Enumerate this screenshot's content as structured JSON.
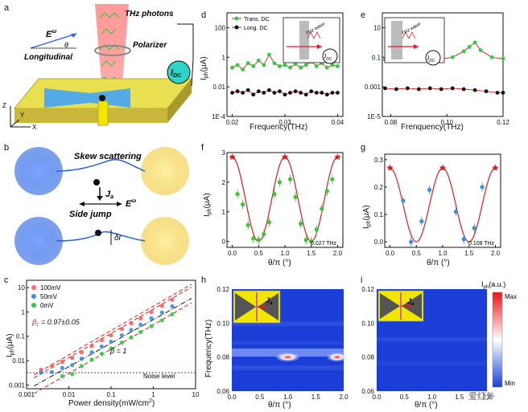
{
  "colors": {
    "red": "#e41a1c",
    "green": "#2ecc40",
    "blue_dot": "#3a7bd5",
    "yellow_pad": "#f2e600",
    "cyan": "#2fd3c8",
    "beam": "#ff6b6b",
    "heatmap_bg": "#1b3fd6"
  },
  "panels": {
    "a": {
      "label": "a",
      "thz_photons": "THz photons",
      "polarizer": "Polarizer",
      "e_field": "E",
      "e_sup": "ω",
      "theta": "θ",
      "longitudinal": "Longitudinal",
      "idc": "I",
      "idc_sub": "DC",
      "axis_z": "Z",
      "axis_y": "Y",
      "axis_x": "X"
    },
    "b": {
      "label": "b",
      "skew": "Skew scattering",
      "side_jump": "Side jump",
      "ja": "J",
      "ja_sub": "a",
      "e_field": "E",
      "e_sup": "ω",
      "delta_r": "δr"
    },
    "c": {
      "label": "c",
      "legend": [
        "100mV",
        "50mV",
        "0mV"
      ],
      "beta_fit": "β",
      "beta_fit_sub": "1",
      "beta_fit_val": " = 0.97±0.05",
      "beta_one": "β = 1",
      "noise": "Noise level",
      "xlabel": "Power density(mW/cm",
      "xlabel_sup": "2",
      "xlabel_end": ")",
      "ylabel": "I",
      "ylabel_sub": "ph",
      "ylabel_end": "(μA)",
      "xticks": [
        "0.001",
        "0.01",
        "0.1",
        "1",
        "10"
      ],
      "yticks": [
        "0.001",
        "0.01",
        "0.1",
        "1",
        "10"
      ]
    },
    "d": {
      "label": "d",
      "legend": [
        "Trans. DC",
        "Long. DC"
      ],
      "xlabel": "Frequency(THz)",
      "ylabel": "I",
      "ylabel_sub": "ph",
      "ylabel_end": "(μA)",
      "xticks": [
        "0.02",
        "0.03",
        "0.04"
      ],
      "yticks": [
        "1E-4",
        "0.01",
        "1",
        "100"
      ],
      "inset_thz": "THz wave",
      "inset_idc": "I",
      "inset_idc_sub": "DC"
    },
    "e": {
      "label": "e",
      "xlabel": "Frenquency(THz)",
      "yticks": [
        "1E-5",
        "0.001",
        "0.1",
        "10"
      ],
      "xticks": [
        "0.08",
        "0.10",
        "0.12"
      ],
      "inset_thz": "THz wave",
      "inset_idc": "I",
      "inset_idc_sub": "DC"
    },
    "f": {
      "label": "f",
      "freq_note": "0.027 THz",
      "xlabel": "θ/π (°)",
      "ylabel": "I",
      "ylabel_sub": "ph",
      "ylabel_end": "(μA)",
      "xticks": [
        "0.0",
        "0.5",
        "1.0",
        "1.5",
        "2.0"
      ],
      "yticks": [
        "0",
        "1",
        "2",
        "3"
      ]
    },
    "g": {
      "label": "g",
      "freq_note": "0.108 THz",
      "xlabel": "θ/π (°)",
      "ylabel": "I",
      "ylabel_sub": "ph",
      "ylabel_end": "(μA)",
      "xticks": [
        "0.0",
        "0.5",
        "1.0",
        "1.5",
        "2.0"
      ],
      "yticks": [
        "0.0",
        "0.1",
        "0.2",
        "0.3"
      ]
    },
    "h": {
      "label": "h",
      "ja": "J",
      "ja_sub": "a",
      "xlabel": "θ/π (°)",
      "ylabel": "Frequency(THz)",
      "xticks": [
        "0.0",
        "0.5",
        "1.0",
        "1.5",
        "2.0"
      ],
      "yticks": [
        "0.06",
        "0.08",
        "0.10",
        "0.12"
      ]
    },
    "i": {
      "label": "i",
      "ja": "J",
      "ja_sub": "a",
      "xlabel": "θ/π (°)",
      "xticks": [
        "0.0",
        "0.5",
        "1.0",
        "1.5",
        "2.0"
      ],
      "yticks": [
        "0.06",
        "0.08",
        "0.10",
        "0.12"
      ],
      "cbar_title": "I",
      "cbar_title_sub": "ph",
      "cbar_title_end": "(a.u.)",
      "cbar_max": "Max",
      "cbar_min": "Min"
    }
  },
  "watermark": "爱红外",
  "chart_data": [
    {
      "id": "c",
      "type": "scatter",
      "title": "",
      "xlabel": "Power density(mW/cm2)",
      "ylabel": "Iph(μA)",
      "xscale": "log",
      "yscale": "log",
      "xlim": [
        0.001,
        10
      ],
      "ylim": [
        0.0007,
        20
      ],
      "series": [
        {
          "name": "100mV",
          "x": [
            0.0022,
            0.004,
            0.007,
            0.012,
            0.02,
            0.035,
            0.06,
            0.1,
            0.18,
            0.3,
            0.5,
            0.9,
            1.6,
            2.8
          ],
          "y": [
            0.0042,
            0.006,
            0.009,
            0.013,
            0.022,
            0.04,
            0.07,
            0.11,
            0.2,
            0.34,
            0.55,
            1.0,
            1.8,
            3.2
          ]
        },
        {
          "name": "50mV",
          "x": [
            0.0022,
            0.004,
            0.007,
            0.012,
            0.02,
            0.035,
            0.06,
            0.1,
            0.18,
            0.3,
            0.5,
            0.9,
            1.6,
            2.8
          ],
          "y": [
            0.0032,
            0.0034,
            0.005,
            0.0065,
            0.012,
            0.022,
            0.038,
            0.06,
            0.11,
            0.18,
            0.3,
            0.55,
            0.95,
            1.7
          ]
        },
        {
          "name": "0mV",
          "x": [
            0.007,
            0.012,
            0.02,
            0.035,
            0.06,
            0.1,
            0.18,
            0.3,
            0.5,
            0.9,
            1.6,
            2.8
          ],
          "y": [
            0.0023,
            0.0028,
            0.006,
            0.011,
            0.019,
            0.032,
            0.055,
            0.09,
            0.15,
            0.26,
            0.45,
            0.8
          ]
        }
      ],
      "noise_level": 0.0032
    },
    {
      "id": "d",
      "type": "line",
      "xlabel": "Frequency(THz)",
      "ylabel": "Iph(μA)",
      "xlim": [
        0.019,
        0.041
      ],
      "ylim": [
        0.0001,
        1000
      ],
      "yscale": "log",
      "series": [
        {
          "name": "Trans. DC",
          "x": [
            0.02,
            0.021,
            0.022,
            0.023,
            0.024,
            0.025,
            0.026,
            0.027,
            0.028,
            0.029,
            0.03,
            0.031,
            0.032,
            0.033,
            0.034,
            0.035,
            0.036,
            0.037,
            0.038,
            0.039,
            0.04
          ],
          "y": [
            0.2,
            0.3,
            0.15,
            0.4,
            0.25,
            0.6,
            0.3,
            1.5,
            0.4,
            0.25,
            0.3,
            0.2,
            0.35,
            0.2,
            0.3,
            0.5,
            0.25,
            0.4,
            0.2,
            0.3,
            0.25
          ]
        },
        {
          "name": "Long. DC",
          "x": [
            0.02,
            0.021,
            0.022,
            0.023,
            0.024,
            0.025,
            0.026,
            0.027,
            0.028,
            0.029,
            0.03,
            0.031,
            0.032,
            0.033,
            0.034,
            0.035,
            0.036,
            0.037,
            0.038,
            0.039,
            0.04
          ],
          "y": [
            0.004,
            0.005,
            0.004,
            0.006,
            0.003,
            0.005,
            0.004,
            0.006,
            0.004,
            0.005,
            0.003,
            0.004,
            0.005,
            0.004,
            0.003,
            0.005,
            0.004,
            0.004,
            0.003,
            0.004,
            0.004
          ]
        }
      ]
    },
    {
      "id": "e",
      "type": "line",
      "xlabel": "Frenquency(THz)",
      "ylabel": "",
      "xlim": [
        0.077,
        0.12
      ],
      "ylim": [
        1e-05,
        100
      ],
      "yscale": "log",
      "series": [
        {
          "name": "Trans. DC",
          "x": [
            0.078,
            0.082,
            0.086,
            0.09,
            0.094,
            0.098,
            0.102,
            0.106,
            0.108,
            0.11,
            0.112,
            0.116,
            0.12
          ],
          "y": [
            0.07,
            0.06,
            0.08,
            0.07,
            0.09,
            0.08,
            0.1,
            0.25,
            0.5,
            1.0,
            0.3,
            0.1,
            0.08
          ]
        },
        {
          "name": "Long. DC",
          "x": [
            0.078,
            0.082,
            0.086,
            0.09,
            0.094,
            0.098,
            0.102,
            0.106,
            0.11,
            0.114,
            0.118,
            0.12
          ],
          "y": [
            0.0008,
            0.0007,
            0.0008,
            0.0007,
            0.0008,
            0.0007,
            0.0008,
            0.0007,
            0.0006,
            0.0005,
            0.0004,
            0.0004
          ]
        }
      ]
    },
    {
      "id": "f",
      "type": "scatter",
      "xlabel": "θ/π (°)",
      "ylabel": "Iph(μA)",
      "xlim": [
        -0.1,
        2.1
      ],
      "ylim": [
        -0.2,
        3.0
      ],
      "points_x": [
        0.0,
        0.1,
        0.2,
        0.3,
        0.4,
        0.5,
        0.6,
        0.7,
        0.8,
        0.9,
        1.0,
        1.1,
        1.2,
        1.3,
        1.4,
        1.5,
        1.6,
        1.7,
        1.8,
        1.9,
        2.0
      ],
      "points_y": [
        2.85,
        1.6,
        1.25,
        0.55,
        0.1,
        0.05,
        0.25,
        0.65,
        1.6,
        2.0,
        2.85,
        2.1,
        1.5,
        0.6,
        0.05,
        0.0,
        0.4,
        1.1,
        1.7,
        2.1,
        2.85
      ],
      "fit": "A·cos²(πθ)",
      "fit_amplitude": 2.85,
      "note": "0.027 THz"
    },
    {
      "id": "g",
      "type": "scatter",
      "xlabel": "θ/π (°)",
      "ylabel": "Iph(μA)",
      "xlim": [
        -0.1,
        2.1
      ],
      "ylim": [
        -0.02,
        0.32
      ],
      "points_x": [
        0.0,
        0.25,
        0.4,
        0.6,
        0.75,
        1.0,
        1.25,
        1.4,
        1.6,
        1.75,
        2.0
      ],
      "points_y": [
        0.27,
        0.15,
        0.0,
        0.075,
        0.19,
        0.27,
        0.11,
        0.01,
        0.05,
        0.2,
        0.27
      ],
      "fit": "A·cos²(πθ)",
      "fit_amplitude": 0.27,
      "note": "0.108 THz"
    },
    {
      "id": "h",
      "type": "heatmap",
      "xlabel": "θ/π (°)",
      "ylabel": "Frequency(THz)",
      "xlim": [
        0,
        2.0
      ],
      "ylim": [
        0.06,
        0.12
      ],
      "hot_band_frequency": 0.08,
      "hot_spots_theta": [
        1.0,
        2.0
      ]
    },
    {
      "id": "i",
      "type": "heatmap",
      "xlabel": "θ/π (°)",
      "ylabel": "",
      "xlim": [
        0,
        2.0
      ],
      "ylim": [
        0.06,
        0.12
      ],
      "hot_band_frequency": null
    }
  ]
}
